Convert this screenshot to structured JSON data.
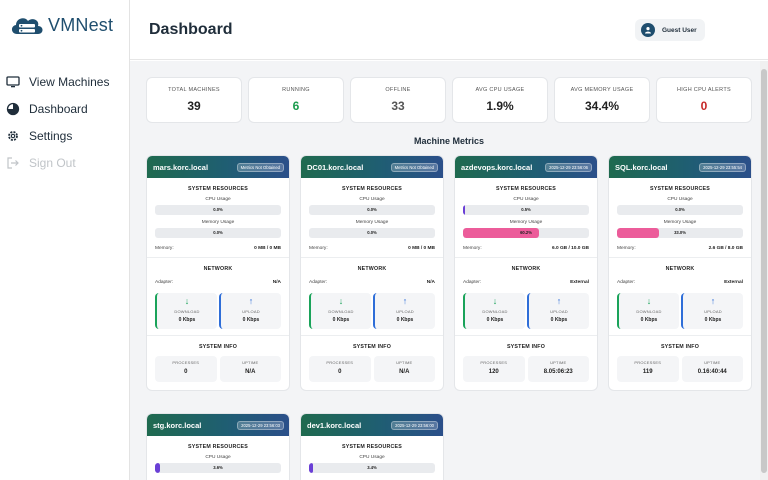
{
  "app": {
    "name": "VMNest"
  },
  "sidebar": {
    "items": [
      {
        "label": "View Machines",
        "icon": "monitor-icon"
      },
      {
        "label": "Dashboard",
        "icon": "pie-chart-icon"
      },
      {
        "label": "Settings",
        "icon": "gear-icon"
      },
      {
        "label": "Sign Out",
        "icon": "sign-out-icon",
        "disabled": true
      }
    ]
  },
  "header": {
    "title": "Dashboard",
    "user": "Guest User"
  },
  "stats": [
    {
      "label": "TOTAL MACHINES",
      "value": "39"
    },
    {
      "label": "RUNNING",
      "value": "6"
    },
    {
      "label": "OFFLINE",
      "value": "33"
    },
    {
      "label": "AVG CPU USAGE",
      "value": "1.9%"
    },
    {
      "label": "AVG MEMORY USAGE",
      "value": "34.4%"
    },
    {
      "label": "HIGH CPU ALERTS",
      "value": "0"
    }
  ],
  "section_title": "Machine Metrics",
  "labels": {
    "system_resources": "SYSTEM RESOURCES",
    "cpu_usage": "CPU Usage",
    "memory_usage": "Memory Usage",
    "memory": "Memory:",
    "network": "NETWORK",
    "adapter": "Adapter:",
    "download": "DOWNLOAD",
    "upload": "UPLOAD",
    "system_info": "SYSTEM INFO",
    "processes": "PROCESSES",
    "uptime": "UPTIME",
    "down_arrow": "↓",
    "up_arrow": "↑"
  },
  "machines": [
    {
      "name": "mars.korc.local",
      "badge": "Metrics Not Obtained",
      "cpu_text": "0.0%",
      "cpu_pct": 0,
      "mem_text": "0.0%",
      "mem_pct": 0,
      "memory": "0 MB / 0 MB",
      "adapter": "N/A",
      "download": "0 Kbps",
      "upload": "0 Kbps",
      "processes": "0",
      "uptime": "N/A"
    },
    {
      "name": "DC01.korc.local",
      "badge": "Metrics Not Obtained",
      "cpu_text": "0.0%",
      "cpu_pct": 0,
      "mem_text": "0.0%",
      "mem_pct": 0,
      "memory": "0 MB / 0 MB",
      "adapter": "N/A",
      "download": "0 Kbps",
      "upload": "0 Kbps",
      "processes": "0",
      "uptime": "N/A"
    },
    {
      "name": "azdevops.korc.local",
      "badge": "2025-12-29 23:56:06",
      "cpu_text": "0.5%",
      "cpu_pct": 0.5,
      "mem_text": "60.2%",
      "mem_pct": 60.2,
      "memory": "6.0 GB / 10.0 GB",
      "adapter": "External",
      "download": "0 Kbps",
      "upload": "0 Kbps",
      "processes": "120",
      "uptime": "8.05:06:23"
    },
    {
      "name": "SQL.korc.local",
      "badge": "2025-12-29 23:55:54",
      "cpu_text": "0.0%",
      "cpu_pct": 0,
      "mem_text": "33.0%",
      "mem_pct": 33.0,
      "memory": "2.6 GB / 8.0 GB",
      "adapter": "External",
      "download": "0 Kbps",
      "upload": "0 Kbps",
      "processes": "119",
      "uptime": "0.16:40:44"
    },
    {
      "name": "stg.korc.local",
      "badge": "2025-12-29 23:56:03",
      "cpu_text": "3.6%",
      "cpu_pct": 3.6
    },
    {
      "name": "dev1.korc.local",
      "badge": "2025-12-29 23:56:00",
      "cpu_text": "3.4%",
      "cpu_pct": 3.4
    }
  ],
  "colors": {
    "brand": "#1f4e6e",
    "running": "#1a9b4c",
    "alert": "#c62828",
    "cpu_bar": "#6a3fd6",
    "mem_bar": "#ec5c9a"
  }
}
